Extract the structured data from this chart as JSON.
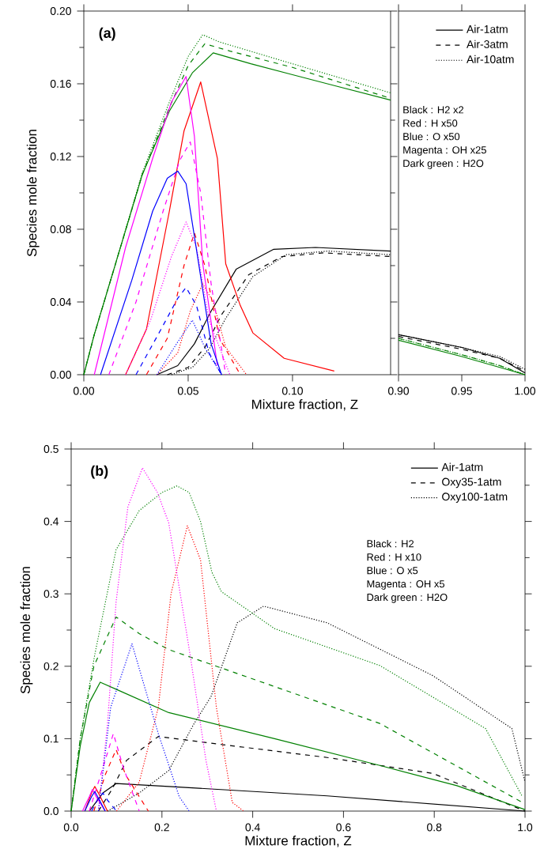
{
  "chart_data": [
    {
      "type": "line",
      "title": "(a)",
      "xlabel": "Mixture fraction, Z",
      "ylabel": "Species mole fraction",
      "xlim": [
        0,
        0.147
      ],
      "ylim": [
        0,
        0.2
      ],
      "xticks": [
        {
          "value": 0,
          "label": "0.00"
        },
        {
          "value": 0.05,
          "label": "0.05"
        },
        {
          "value": 0.1,
          "label": "0.10"
        }
      ],
      "yticks": [
        {
          "value": 0,
          "label": "0.00"
        },
        {
          "value": 0.04,
          "label": "0.04"
        },
        {
          "value": 0.08,
          "label": "0.08"
        },
        {
          "value": 0.12,
          "label": "0.12"
        },
        {
          "value": 0.16,
          "label": "0.16"
        },
        {
          "value": 0.2,
          "label": "0.20"
        }
      ],
      "series": [
        {
          "color": "#008000",
          "line_style": "solid",
          "x": [
            0,
            0.005,
            0.0152,
            0.028,
            0.041,
            0.052,
            0.062,
            0.08,
            0.1,
            0.12,
            0.147
          ],
          "values": [
            0,
            0.022,
            0.061,
            0.11,
            0.145,
            0.166,
            0.177,
            0.171,
            0.165,
            0.159,
            0.151
          ]
        },
        {
          "color": "#008000",
          "line_style": "dashed",
          "x": [
            0,
            0.005,
            0.0152,
            0.028,
            0.041,
            0.05,
            0.058,
            0.07,
            0.1,
            0.147
          ],
          "values": [
            0,
            0.022,
            0.061,
            0.11,
            0.147,
            0.17,
            0.182,
            0.178,
            0.169,
            0.152
          ]
        },
        {
          "color": "#008000",
          "line_style": "dotted",
          "x": [
            0,
            0.005,
            0.0152,
            0.028,
            0.041,
            0.05,
            0.057,
            0.065,
            0.1,
            0.147
          ],
          "values": [
            0,
            0.022,
            0.061,
            0.111,
            0.15,
            0.175,
            0.187,
            0.183,
            0.171,
            0.155
          ]
        },
        {
          "color": "#000000",
          "line_style": "solid",
          "x": [
            0.035,
            0.045,
            0.053,
            0.061,
            0.073,
            0.091,
            0.111,
            0.147
          ],
          "values": [
            0,
            0.005,
            0.017,
            0.035,
            0.058,
            0.069,
            0.07,
            0.068
          ]
        },
        {
          "color": "#000000",
          "line_style": "dashed",
          "x": [
            0.04,
            0.05,
            0.058,
            0.066,
            0.079,
            0.095,
            0.115,
            0.147
          ],
          "values": [
            0,
            0.004,
            0.015,
            0.033,
            0.055,
            0.065,
            0.067,
            0.065
          ]
        },
        {
          "color": "#000000",
          "line_style": "dotted",
          "x": [
            0.042,
            0.052,
            0.06,
            0.068,
            0.081,
            0.097,
            0.117,
            0.147
          ],
          "values": [
            0,
            0.004,
            0.014,
            0.031,
            0.054,
            0.066,
            0.068,
            0.066
          ]
        },
        {
          "color": "#ff0000",
          "line_style": "solid",
          "x": [
            0.02,
            0.03,
            0.041,
            0.048,
            0.056,
            0.064,
            0.068,
            0.075,
            0.081,
            0.096,
            0.12
          ],
          "values": [
            0,
            0.025,
            0.09,
            0.134,
            0.161,
            0.119,
            0.061,
            0.038,
            0.023,
            0.009,
            0.002
          ]
        },
        {
          "color": "#ff0000",
          "line_style": "dashed",
          "x": [
            0.03,
            0.04,
            0.048,
            0.053,
            0.058,
            0.065,
            0.075
          ],
          "values": [
            0,
            0.02,
            0.06,
            0.078,
            0.06,
            0.02,
            0
          ]
        },
        {
          "color": "#ff0000",
          "line_style": "dotted",
          "x": [
            0.035,
            0.045,
            0.051,
            0.057,
            0.062,
            0.068,
            0.078
          ],
          "values": [
            0,
            0.012,
            0.035,
            0.05,
            0.04,
            0.015,
            0
          ]
        },
        {
          "color": "#ff00ff",
          "line_style": "solid",
          "x": [
            0.005,
            0.02,
            0.033,
            0.042,
            0.049,
            0.053,
            0.057,
            0.064
          ],
          "values": [
            0,
            0.07,
            0.119,
            0.15,
            0.164,
            0.131,
            0.061,
            0.005
          ]
        },
        {
          "color": "#ff00ff",
          "line_style": "dashed",
          "x": [
            0.012,
            0.025,
            0.038,
            0.046,
            0.051,
            0.056,
            0.061,
            0.068
          ],
          "values": [
            0,
            0.04,
            0.09,
            0.118,
            0.128,
            0.1,
            0.05,
            0
          ]
        },
        {
          "color": "#ff00ff",
          "line_style": "dotted",
          "x": [
            0.02,
            0.032,
            0.042,
            0.049,
            0.054,
            0.06,
            0.07
          ],
          "values": [
            0,
            0.03,
            0.065,
            0.084,
            0.07,
            0.03,
            0
          ]
        },
        {
          "color": "#0000ff",
          "line_style": "solid",
          "x": [
            0.008,
            0.023,
            0.033,
            0.04,
            0.045,
            0.049,
            0.053,
            0.061,
            0.066
          ],
          "values": [
            0,
            0.052,
            0.09,
            0.108,
            0.112,
            0.105,
            0.076,
            0.017,
            0
          ]
        },
        {
          "color": "#0000ff",
          "line_style": "dashed",
          "x": [
            0.025,
            0.037,
            0.045,
            0.049,
            0.054,
            0.06,
            0.066
          ],
          "values": [
            0,
            0.025,
            0.042,
            0.048,
            0.038,
            0.012,
            0
          ]
        },
        {
          "color": "#0000ff",
          "line_style": "dotted",
          "x": [
            0.035,
            0.045,
            0.052,
            0.058,
            0.066
          ],
          "values": [
            0,
            0.018,
            0.03,
            0.015,
            0
          ]
        }
      ]
    },
    {
      "type": "line",
      "xlim": [
        0.9,
        1.0
      ],
      "ylim": [
        0,
        0.2
      ],
      "tick_labels": "x",
      "legend": "top right",
      "xticks": [
        {
          "value": 0.9,
          "label": "0.90"
        },
        {
          "value": 0.95,
          "label": "0.95"
        },
        {
          "value": 1.0,
          "label": "1.00"
        }
      ],
      "annotations": [
        "Black : H2 x2",
        "Red : H x50",
        "Blue : O x50",
        "Magenta : OH x25",
        "Dark green : H2O"
      ],
      "series": [
        {
          "name": "Air-1atm",
          "color": "#000000",
          "line_style": "solid",
          "x": [
            0.9,
            0.95,
            0.98,
            1.0
          ],
          "values": [
            0.022,
            0.015,
            0.009,
            0.001
          ]
        },
        {
          "name": "Air-3atm",
          "color": "#000000",
          "line_style": "dashed",
          "x": [
            0.9,
            0.95,
            0.98,
            1.0
          ],
          "values": [
            0.021,
            0.014,
            0.009,
            0.002
          ]
        },
        {
          "name": "Air-10atm",
          "color": "#000000",
          "line_style": "dotted",
          "x": [
            0.9,
            0.95,
            0.98,
            1.0
          ],
          "values": [
            0.022,
            0.015,
            0.01,
            0.003
          ]
        },
        {
          "color": "#008000",
          "line_style": "solid",
          "x": [
            0.9,
            0.95,
            0.98,
            1.0
          ],
          "values": [
            0.019,
            0.01,
            0.004,
            0
          ]
        },
        {
          "color": "#008000",
          "line_style": "dashed",
          "x": [
            0.9,
            0.95,
            0.98,
            1.0
          ],
          "values": [
            0.02,
            0.011,
            0.005,
            0
          ]
        },
        {
          "color": "#008000",
          "line_style": "dotted",
          "x": [
            0.9,
            0.95,
            0.98,
            1.0
          ],
          "values": [
            0.02,
            0.011,
            0.005,
            0
          ]
        }
      ]
    },
    {
      "type": "line",
      "title": "(b)",
      "xlabel": "Mixture fraction, Z",
      "ylabel": "Species mole fraction",
      "xlim": [
        0,
        1
      ],
      "ylim": [
        0,
        0.5
      ],
      "legend": "top right",
      "xticks": [
        {
          "value": 0,
          "label": "0.0"
        },
        {
          "value": 0.2,
          "label": "0.2"
        },
        {
          "value": 0.4,
          "label": "0.4"
        },
        {
          "value": 0.6,
          "label": "0.6"
        },
        {
          "value": 0.8,
          "label": "0.8"
        },
        {
          "value": 1.0,
          "label": "1.0"
        }
      ],
      "yticks": [
        {
          "value": 0,
          "label": "0.0"
        },
        {
          "value": 0.1,
          "label": "0.1"
        },
        {
          "value": 0.2,
          "label": "0.2"
        },
        {
          "value": 0.3,
          "label": "0.3"
        },
        {
          "value": 0.4,
          "label": "0.4"
        },
        {
          "value": 0.5,
          "label": "0.5"
        }
      ],
      "annotations": [
        "Black : H2",
        "Red : H x10",
        "Blue : O x5",
        "Magenta : OH x5",
        "Dark green : H2O"
      ],
      "series": [
        {
          "name": "Air-1atm",
          "color": "#000000",
          "line_style": "solid",
          "x": [
            0.04,
            0.07,
            0.099,
            0.215,
            0.564,
            1.0
          ],
          "values": [
            0,
            0.025,
            0.038,
            0.034,
            0.021,
            0
          ]
        },
        {
          "name": "Oxy35-1atm",
          "color": "#000000",
          "line_style": "dashed",
          "x": [
            0.06,
            0.09,
            0.122,
            0.192,
            0.331,
            0.564,
            0.797,
            1.0
          ],
          "values": [
            0,
            0.03,
            0.07,
            0.103,
            0.092,
            0.074,
            0.052,
            0
          ]
        },
        {
          "name": "Oxy100-1atm",
          "color": "#000000",
          "line_style": "dotted",
          "x": [
            0.08,
            0.15,
            0.215,
            0.27,
            0.308,
            0.366,
            0.424,
            0.564,
            0.797,
            0.971,
            1.0
          ],
          "values": [
            0,
            0.025,
            0.056,
            0.12,
            0.158,
            0.26,
            0.283,
            0.26,
            0.187,
            0.114,
            0.04
          ]
        },
        {
          "color": "#008000",
          "line_style": "solid",
          "x": [
            0,
            0.02,
            0.04,
            0.064,
            0.1,
            0.215,
            0.448,
            0.68,
            0.85,
            1.0
          ],
          "values": [
            0,
            0.09,
            0.15,
            0.178,
            0.168,
            0.136,
            0.1,
            0.063,
            0.035,
            0.002
          ]
        },
        {
          "color": "#008000",
          "line_style": "dashed",
          "x": [
            0,
            0.02,
            0.05,
            0.099,
            0.15,
            0.215,
            0.448,
            0.68,
            0.994
          ],
          "values": [
            0,
            0.1,
            0.2,
            0.268,
            0.245,
            0.223,
            0.172,
            0.121,
            0.012
          ]
        },
        {
          "color": "#008000",
          "line_style": "dotted",
          "x": [
            0,
            0.02,
            0.052,
            0.099,
            0.15,
            0.2,
            0.233,
            0.26,
            0.285,
            0.31,
            0.331,
            0.448,
            0.68,
            0.913,
            0.994
          ],
          "values": [
            0,
            0.1,
            0.216,
            0.361,
            0.415,
            0.44,
            0.449,
            0.44,
            0.4,
            0.33,
            0.303,
            0.252,
            0.201,
            0.114,
            0.02
          ]
        },
        {
          "color": "#ff0000",
          "line_style": "solid",
          "x": [
            0.03,
            0.045,
            0.052,
            0.06,
            0.08
          ],
          "values": [
            0,
            0.025,
            0.034,
            0.025,
            0
          ]
        },
        {
          "color": "#ff0000",
          "line_style": "dashed",
          "x": [
            0.05,
            0.075,
            0.099,
            0.12,
            0.17
          ],
          "values": [
            0,
            0.05,
            0.085,
            0.05,
            0
          ]
        },
        {
          "color": "#ff0000",
          "line_style": "dotted",
          "x": [
            0.1,
            0.15,
            0.192,
            0.22,
            0.256,
            0.285,
            0.32,
            0.355,
            0.38
          ],
          "values": [
            0,
            0.04,
            0.143,
            0.3,
            0.394,
            0.347,
            0.143,
            0.012,
            0
          ]
        },
        {
          "color": "#ff00ff",
          "line_style": "solid",
          "x": [
            0.025,
            0.04,
            0.047,
            0.055,
            0.075
          ],
          "values": [
            0,
            0.02,
            0.03,
            0.02,
            0
          ]
        },
        {
          "color": "#ff00ff",
          "line_style": "dashed",
          "x": [
            0.04,
            0.07,
            0.093,
            0.115,
            0.15
          ],
          "values": [
            0,
            0.06,
            0.107,
            0.06,
            0
          ]
        },
        {
          "color": "#ff00ff",
          "line_style": "dotted",
          "x": [
            0.06,
            0.08,
            0.099,
            0.125,
            0.157,
            0.19,
            0.215,
            0.262,
            0.297,
            0.32
          ],
          "values": [
            0,
            0.12,
            0.289,
            0.42,
            0.474,
            0.44,
            0.398,
            0.216,
            0.07,
            0
          ]
        },
        {
          "color": "#0000ff",
          "line_style": "solid",
          "x": [
            0.03,
            0.045,
            0.052,
            0.06,
            0.075
          ],
          "values": [
            0,
            0.02,
            0.027,
            0.018,
            0
          ]
        },
        {
          "color": "#0000ff",
          "line_style": "dashed",
          "x": [
            0.045,
            0.06,
            0.07,
            0.08,
            0.1
          ],
          "values": [
            0,
            0.018,
            0.025,
            0.015,
            0
          ]
        },
        {
          "color": "#0000ff",
          "line_style": "dotted",
          "x": [
            0.06,
            0.087,
            0.134,
            0.192,
            0.238,
            0.26
          ],
          "values": [
            0,
            0.143,
            0.231,
            0.107,
            0.02,
            0
          ]
        }
      ]
    }
  ]
}
